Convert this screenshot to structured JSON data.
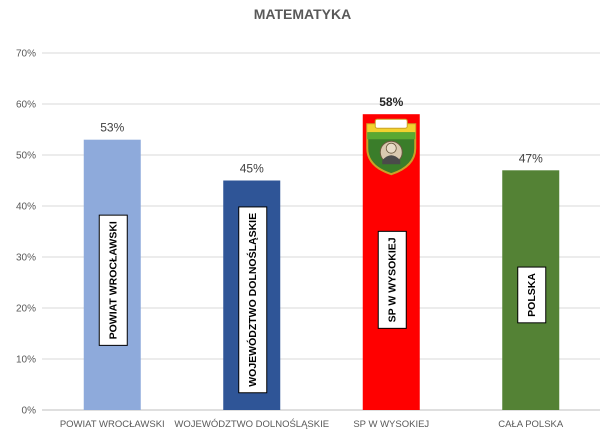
{
  "chart_data": {
    "type": "bar",
    "title": "MATEMATYKA",
    "categories": [
      "POWIAT WROCŁAWSKI",
      "WOJEWÓDZTWO DOLNOŚLĄSKIE",
      "SP W WYSOKIEJ",
      "CAŁA POLSKA"
    ],
    "values": [
      53,
      45,
      58,
      47
    ],
    "value_labels": [
      "53%",
      "45%",
      "58%",
      "47%"
    ],
    "bar_colors": [
      "#8eaadb",
      "#2f5597",
      "#ff0000",
      "#548235"
    ],
    "inbar_labels": [
      "POWIAT WROCŁAWSKI",
      "WOJEWÓDZTWO DOLNOŚLĄSKIE",
      "SP W WYSOKIEJ",
      "POLSKA"
    ],
    "highlight_index": 2,
    "y_ticks": [
      "0%",
      "10%",
      "20%",
      "30%",
      "40%",
      "50%",
      "60%",
      "70%"
    ],
    "ylim": [
      0,
      70
    ],
    "grid": true,
    "logo_icon": "school-emblem-icon"
  }
}
